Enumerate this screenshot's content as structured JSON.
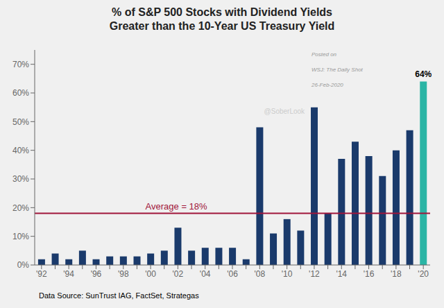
{
  "chart_data": {
    "type": "bar",
    "title": "% of S&P 500 Stocks with Dividend Yields\nGreater than the 10-Year US Treasury Yield",
    "categories": [
      "'92",
      null,
      "'94",
      null,
      "'96",
      null,
      "'98",
      null,
      "'00",
      null,
      "'02",
      null,
      "'04",
      null,
      "'06",
      null,
      "'08",
      null,
      "'10",
      null,
      "'12",
      null,
      "'14",
      null,
      "'16",
      null,
      "'18",
      null,
      "'20"
    ],
    "values": [
      2,
      4,
      2,
      5,
      2,
      3,
      3,
      3,
      4,
      5,
      13,
      5,
      6,
      6,
      6,
      2,
      48,
      11,
      16,
      12,
      55,
      18,
      37,
      43,
      38,
      31,
      40,
      47,
      64
    ],
    "value_labels": [
      null,
      null,
      null,
      null,
      null,
      null,
      null,
      null,
      null,
      null,
      null,
      null,
      null,
      null,
      null,
      null,
      null,
      null,
      null,
      null,
      null,
      null,
      null,
      null,
      null,
      null,
      null,
      null,
      "64%"
    ],
    "colors": [
      "#1a3a6b",
      "#1a3a6b",
      "#1a3a6b",
      "#1a3a6b",
      "#1a3a6b",
      "#1a3a6b",
      "#1a3a6b",
      "#1a3a6b",
      "#1a3a6b",
      "#1a3a6b",
      "#1a3a6b",
      "#1a3a6b",
      "#1a3a6b",
      "#1a3a6b",
      "#1a3a6b",
      "#1a3a6b",
      "#1a3a6b",
      "#1a3a6b",
      "#1a3a6b",
      "#1a3a6b",
      "#1a3a6b",
      "#1a3a6b",
      "#1a3a6b",
      "#1a3a6b",
      "#1a3a6b",
      "#1a3a6b",
      "#1a3a6b",
      "#1a3a6b",
      "#2ab5a5"
    ],
    "average": {
      "value": 18,
      "label": "Average = 18%",
      "color": "#a0153a"
    },
    "ylim": [
      0,
      75
    ],
    "yticks": [
      {
        "value": 0,
        "label": "0%"
      },
      {
        "value": 10,
        "label": "10%"
      },
      {
        "value": 20,
        "label": "20%"
      },
      {
        "value": 30,
        "label": "30%"
      },
      {
        "value": 40,
        "label": "40%"
      },
      {
        "value": 50,
        "label": "50%"
      },
      {
        "value": 60,
        "label": "60%"
      },
      {
        "value": 70,
        "label": "70%"
      }
    ],
    "grid": false,
    "annotations": [
      {
        "text": "Posted on",
        "color": "#999999"
      },
      {
        "text": "WSJ: The Daily Shot",
        "color": "#999999"
      },
      {
        "text": "26-Feb-2020",
        "color": "#999999"
      },
      {
        "text": "@SoberLook",
        "color": "#cccccc"
      }
    ],
    "footnote": "Data Source: SunTrust IAG, FactSet, Strategas",
    "background": "#f0f0f0"
  }
}
